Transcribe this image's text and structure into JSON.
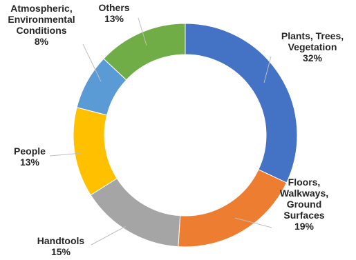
{
  "chart_data": {
    "type": "pie",
    "style": "donut",
    "title": "",
    "slices": [
      {
        "label_lines": [
          "Plants, Trees,",
          "Vegetation"
        ],
        "value": 32,
        "percent_label": "32%",
        "color": "#4472C4"
      },
      {
        "label_lines": [
          "Floors,",
          "Walkways,",
          "Ground",
          "Surfaces"
        ],
        "value": 19,
        "percent_label": "19%",
        "color": "#ED7D31"
      },
      {
        "label_lines": [
          "Handtools"
        ],
        "value": 15,
        "percent_label": "15%",
        "color": "#A5A5A5"
      },
      {
        "label_lines": [
          "People"
        ],
        "value": 13,
        "percent_label": "13%",
        "color": "#FFC000"
      },
      {
        "label_lines": [
          "Atmospheric,",
          "Environmental",
          "Conditions"
        ],
        "value": 8,
        "percent_label": "8%",
        "color": "#5B9BD5"
      },
      {
        "label_lines": [
          "Others"
        ],
        "value": 13,
        "percent_label": "13%",
        "color": "#70AD47"
      }
    ],
    "legend": "none",
    "leader_lines": true
  }
}
